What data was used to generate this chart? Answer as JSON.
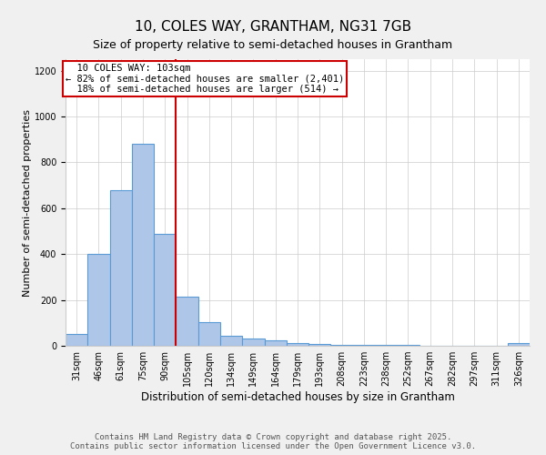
{
  "title": "10, COLES WAY, GRANTHAM, NG31 7GB",
  "subtitle": "Size of property relative to semi-detached houses in Grantham",
  "xlabel": "Distribution of semi-detached houses by size in Grantham",
  "ylabel": "Number of semi-detached properties",
  "categories": [
    "31sqm",
    "46sqm",
    "61sqm",
    "75sqm",
    "90sqm",
    "105sqm",
    "120sqm",
    "134sqm",
    "149sqm",
    "164sqm",
    "179sqm",
    "193sqm",
    "208sqm",
    "223sqm",
    "238sqm",
    "252sqm",
    "267sqm",
    "282sqm",
    "297sqm",
    "311sqm",
    "326sqm"
  ],
  "values": [
    50,
    400,
    680,
    880,
    490,
    215,
    105,
    45,
    30,
    25,
    10,
    8,
    5,
    3,
    2,
    2,
    1,
    1,
    0,
    0,
    10
  ],
  "bar_color": "#aec6e8",
  "bar_edge_color": "#5b9bd5",
  "property_label": "10 COLES WAY: 103sqm",
  "pct_smaller": 82,
  "n_smaller": "2,401",
  "pct_larger": 18,
  "n_larger": "514",
  "vline_color": "#cc0000",
  "annotation_box_color": "#cc0000",
  "annotation_fontsize": 7.5,
  "title_fontsize": 11,
  "subtitle_fontsize": 9,
  "ylabel_fontsize": 8,
  "xlabel_fontsize": 8.5,
  "tick_fontsize": 7,
  "footer_text": "Contains HM Land Registry data © Crown copyright and database right 2025.\nContains public sector information licensed under the Open Government Licence v3.0.",
  "footer_fontsize": 6.5,
  "ylim": [
    0,
    1250
  ],
  "background_color": "#f0f0f0",
  "plot_background_color": "#ffffff",
  "grid_color": "#cccccc"
}
